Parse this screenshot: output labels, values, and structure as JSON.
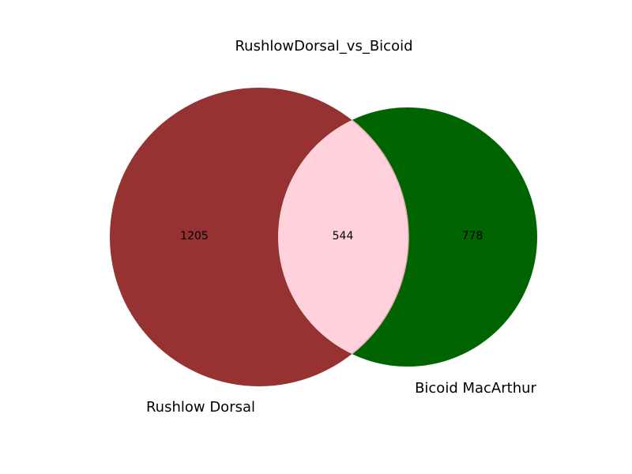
{
  "chart_data": {
    "type": "venn",
    "title": "RushlowDorsal_vs_Bicoid",
    "sets": [
      {
        "name": "Rushlow Dorsal",
        "only_count": 1205,
        "color": "#963232"
      },
      {
        "name": "Bicoid MacArthur",
        "only_count": 778,
        "color": "#006400"
      }
    ],
    "intersection": {
      "count": 544,
      "color": "#ffd1da"
    }
  }
}
